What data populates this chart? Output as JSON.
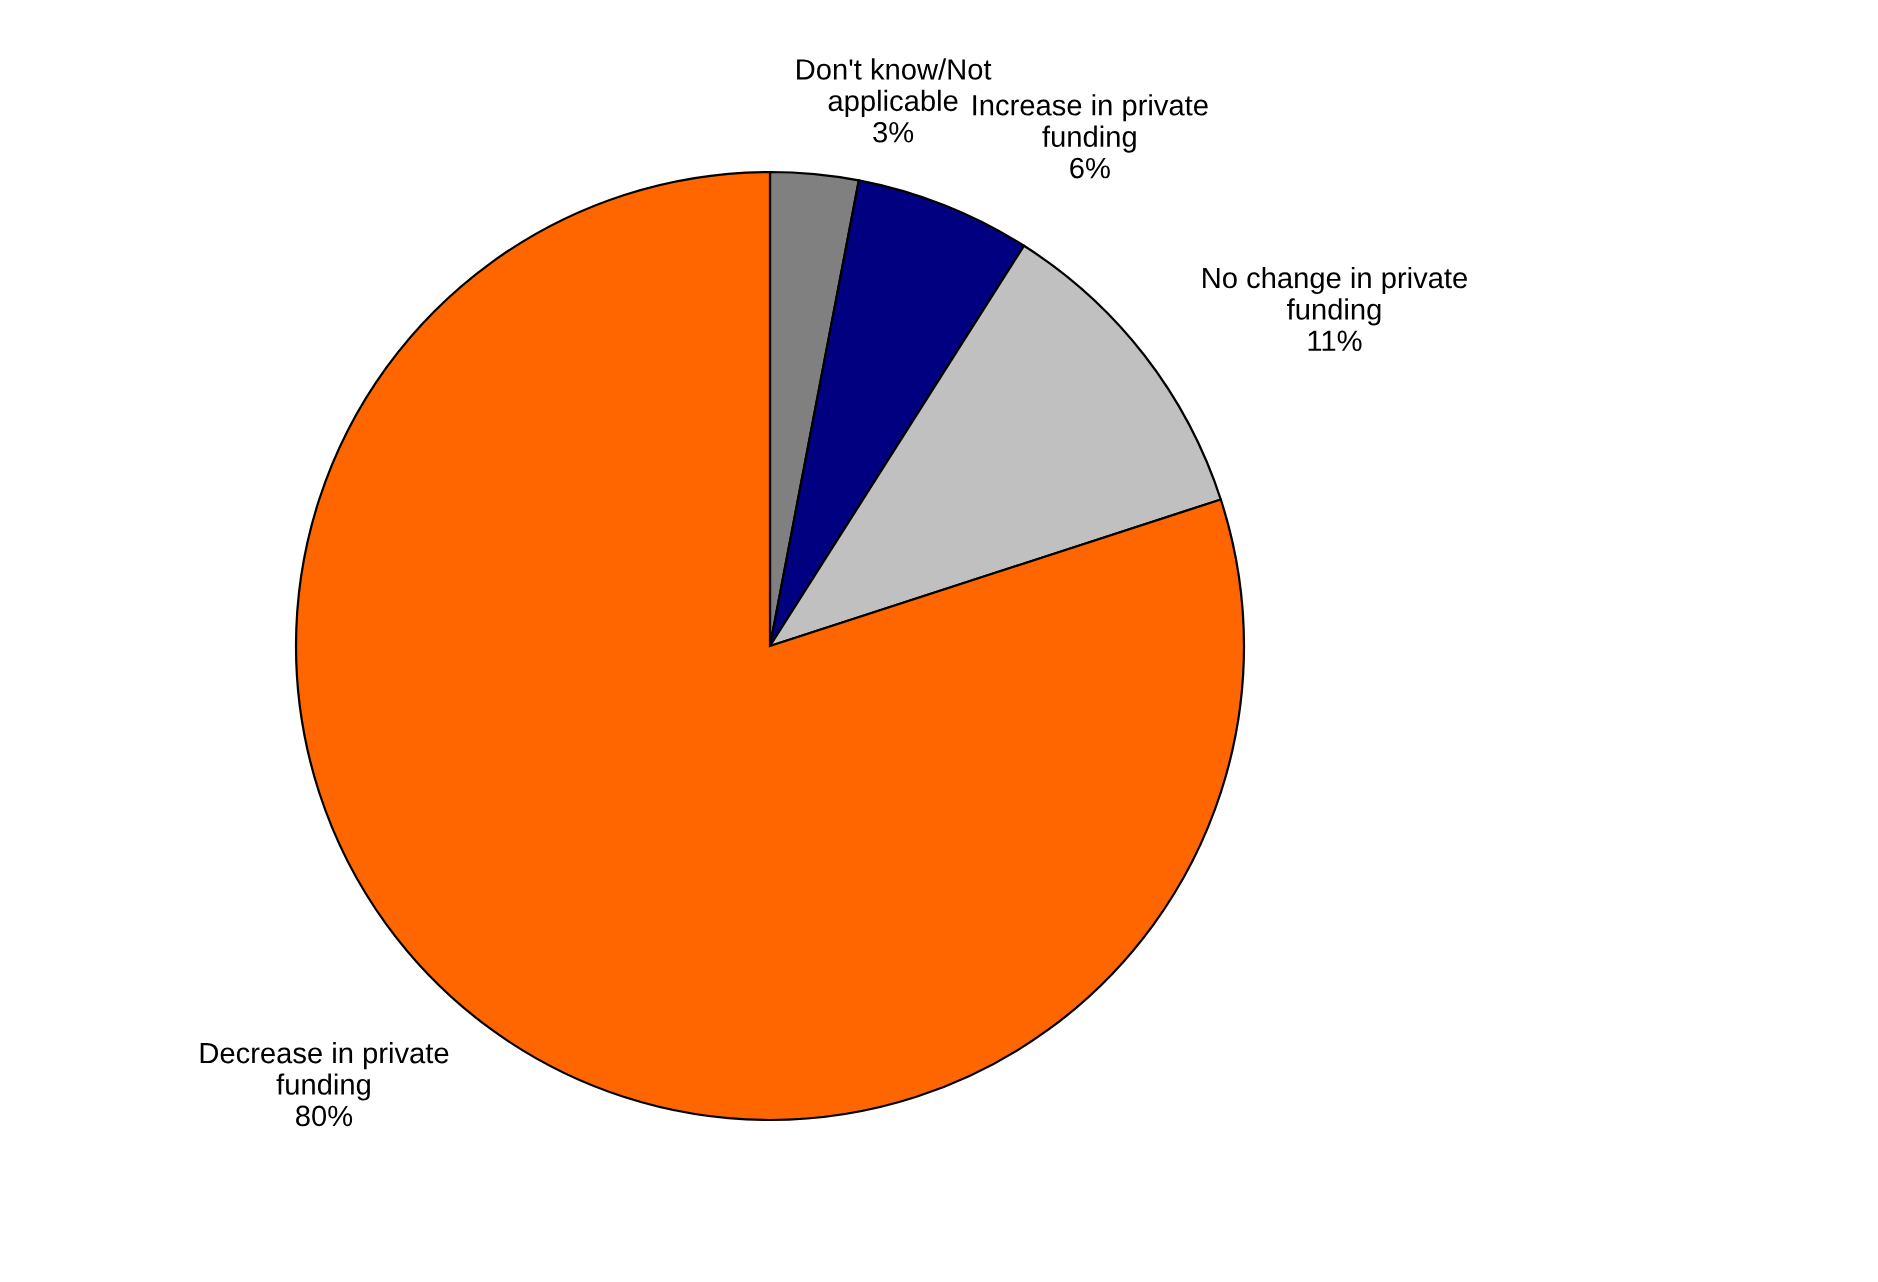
{
  "chart_data": {
    "type": "pie",
    "categories": [
      "Don't know/Not\napplicable",
      "Increase in private\nfunding",
      "No change in private\nfunding",
      "Decrease in private\nfunding"
    ],
    "values": [
      3,
      6,
      11,
      80
    ],
    "colors": [
      "#808080",
      "#000080",
      "#c0c0c0",
      "#ff6600"
    ],
    "value_labels": [
      "3%",
      "6%",
      "11%",
      "80%"
    ]
  }
}
